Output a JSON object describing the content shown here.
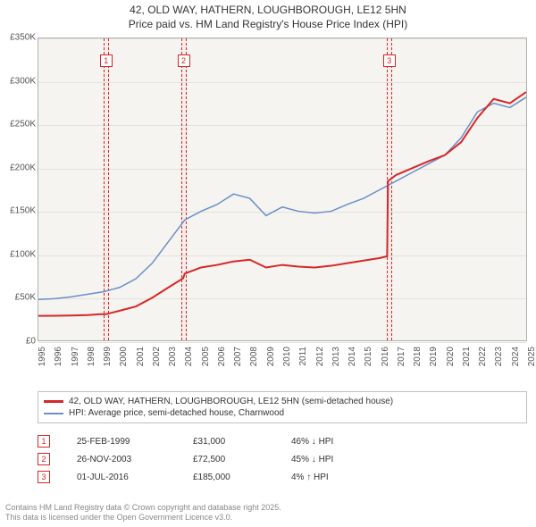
{
  "title_line1": "42, OLD WAY, HATHERN, LOUGHBOROUGH, LE12 5HN",
  "title_line2": "Price paid vs. HM Land Registry's House Price Index (HPI)",
  "chart": {
    "type": "line",
    "background_color": "#f5f4f0",
    "grid_color": "#e4e2dc",
    "border_color": "#b0b0b0",
    "x_years": [
      1995,
      1996,
      1997,
      1998,
      1999,
      2000,
      2001,
      2002,
      2003,
      2004,
      2005,
      2006,
      2007,
      2008,
      2009,
      2010,
      2011,
      2012,
      2013,
      2014,
      2015,
      2016,
      2017,
      2018,
      2019,
      2020,
      2021,
      2022,
      2023,
      2024,
      2025
    ],
    "y_ticks": [
      "£0",
      "£50K",
      "£100K",
      "£150K",
      "£200K",
      "£250K",
      "£300K",
      "£350K"
    ],
    "ylim": [
      0,
      350000
    ],
    "series": [
      {
        "name": "price_paid",
        "color": "#d62728",
        "width": 2,
        "legend": "42, OLD WAY, HATHERN, LOUGHBOROUGH, LE12 5HN (semi-detached house)",
        "points": [
          [
            1995,
            29000
          ],
          [
            1996,
            29200
          ],
          [
            1997,
            29500
          ],
          [
            1998,
            30000
          ],
          [
            1998.8,
            31000
          ],
          [
            1999.15,
            31000
          ],
          [
            2000,
            35000
          ],
          [
            2001,
            40000
          ],
          [
            2002,
            50000
          ],
          [
            2003,
            62000
          ],
          [
            2003.9,
            72500
          ],
          [
            2004,
            78000
          ],
          [
            2005,
            85000
          ],
          [
            2006,
            88000
          ],
          [
            2007,
            92000
          ],
          [
            2008,
            94000
          ],
          [
            2009,
            85000
          ],
          [
            2010,
            88000
          ],
          [
            2011,
            86000
          ],
          [
            2012,
            85000
          ],
          [
            2013,
            87000
          ],
          [
            2014,
            90000
          ],
          [
            2015,
            93000
          ],
          [
            2016,
            96000
          ],
          [
            2016.45,
            98000
          ],
          [
            2016.5,
            185000
          ],
          [
            2017,
            192000
          ],
          [
            2018,
            200000
          ],
          [
            2019,
            208000
          ],
          [
            2020,
            215000
          ],
          [
            2021,
            230000
          ],
          [
            2022,
            258000
          ],
          [
            2023,
            280000
          ],
          [
            2024,
            275000
          ],
          [
            2025,
            288000
          ]
        ]
      },
      {
        "name": "hpi",
        "color": "#6b8fc7",
        "width": 1.5,
        "legend": "HPI: Average price, semi-detached house, Charnwood",
        "points": [
          [
            1995,
            48000
          ],
          [
            1996,
            49000
          ],
          [
            1997,
            51000
          ],
          [
            1998,
            54000
          ],
          [
            1999,
            57000
          ],
          [
            2000,
            62000
          ],
          [
            2001,
            72000
          ],
          [
            2002,
            90000
          ],
          [
            2003,
            115000
          ],
          [
            2004,
            140000
          ],
          [
            2005,
            150000
          ],
          [
            2006,
            158000
          ],
          [
            2007,
            170000
          ],
          [
            2008,
            165000
          ],
          [
            2009,
            145000
          ],
          [
            2010,
            155000
          ],
          [
            2011,
            150000
          ],
          [
            2012,
            148000
          ],
          [
            2013,
            150000
          ],
          [
            2014,
            158000
          ],
          [
            2015,
            165000
          ],
          [
            2016,
            175000
          ],
          [
            2017,
            185000
          ],
          [
            2018,
            195000
          ],
          [
            2019,
            205000
          ],
          [
            2020,
            215000
          ],
          [
            2021,
            235000
          ],
          [
            2022,
            265000
          ],
          [
            2023,
            275000
          ],
          [
            2024,
            270000
          ],
          [
            2025,
            282000
          ]
        ]
      }
    ],
    "flags": [
      {
        "n": "1",
        "year": 1999.15,
        "date": "25-FEB-1999",
        "price": "£31,000",
        "delta": "46% ↓ HPI"
      },
      {
        "n": "2",
        "year": 2003.9,
        "date": "26-NOV-2003",
        "price": "£72,500",
        "delta": "45% ↓ HPI"
      },
      {
        "n": "3",
        "year": 2016.5,
        "date": "01-JUL-2016",
        "price": "£185,000",
        "delta": "4% ↑ HPI"
      }
    ],
    "flag_color": "#d62728"
  },
  "footer_line1": "Contains HM Land Registry data © Crown copyright and database right 2025.",
  "footer_line2": "This data is licensed under the Open Government Licence v3.0.",
  "font_sizes": {
    "title": 12,
    "axis": 10,
    "legend": 10,
    "footer": 9
  }
}
